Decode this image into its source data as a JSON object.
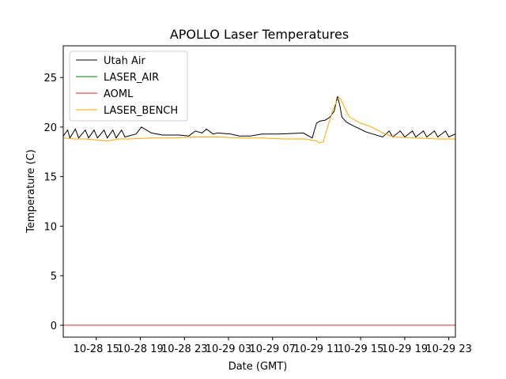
{
  "chart_data": {
    "type": "line",
    "title": "APOLLO Laser Temperatures",
    "xlabel": "Date (GMT)",
    "ylabel": "Temperature (C)",
    "x_unit": "hours since 2018-10-28 12:00 GMT",
    "xlim": [
      0,
      35.6
    ],
    "ylim": [
      -1.2,
      28.2
    ],
    "yticks": [
      0,
      5,
      10,
      15,
      20,
      25
    ],
    "xticks": [
      {
        "x": 3,
        "label": "10-28 15"
      },
      {
        "x": 7,
        "label": "10-28 19"
      },
      {
        "x": 11,
        "label": "10-28 23"
      },
      {
        "x": 15,
        "label": "10-29 03"
      },
      {
        "x": 19,
        "label": "10-29 07"
      },
      {
        "x": 23,
        "label": "10-29 11"
      },
      {
        "x": 27,
        "label": "10-29 15"
      },
      {
        "x": 31,
        "label": "10-29 19"
      },
      {
        "x": 35,
        "label": "10-29 23"
      }
    ],
    "legend_position": "top-left",
    "series": [
      {
        "name": "Utah Air",
        "color": "#000000",
        "x": [
          0,
          0.4,
          0.6,
          1.1,
          1.4,
          2.0,
          2.3,
          2.8,
          3.1,
          3.7,
          4.0,
          4.5,
          4.8,
          5.3,
          5.6,
          6.6,
          7.1,
          8.0,
          9.0,
          10.5,
          11.4,
          12.0,
          12.6,
          13.0,
          13.6,
          14.0,
          15.2,
          16.0,
          17.0,
          18.0,
          19.5,
          21.8,
          22.6,
          23.0,
          23.3,
          23.8,
          24.2,
          24.6,
          24.9,
          25.1,
          25.3,
          25.7,
          26.2,
          27.5,
          29.0,
          29.6,
          29.9,
          30.6,
          31.0,
          31.7,
          32.0,
          32.7,
          33.0,
          33.7,
          34.0,
          34.7,
          35.0,
          35.6
        ],
        "y": [
          19.1,
          19.7,
          18.9,
          19.8,
          18.9,
          19.7,
          18.9,
          19.7,
          18.9,
          19.7,
          18.9,
          19.7,
          18.9,
          19.7,
          19.0,
          19.3,
          20.0,
          19.4,
          19.2,
          19.2,
          19.1,
          19.6,
          19.4,
          19.8,
          19.3,
          19.4,
          19.3,
          19.1,
          19.1,
          19.3,
          19.3,
          19.4,
          18.9,
          20.4,
          20.6,
          20.7,
          21.0,
          21.6,
          23.1,
          22.2,
          21.0,
          20.5,
          20.2,
          19.5,
          19.0,
          19.6,
          19.0,
          19.6,
          19.0,
          19.6,
          19.0,
          19.6,
          19.0,
          19.6,
          19.0,
          19.6,
          19.0,
          19.3
        ]
      },
      {
        "name": "LASER_AIR",
        "color": "#008000",
        "x": [],
        "y": []
      },
      {
        "name": "AOML",
        "color": "#d62728",
        "x": [
          0,
          35.6
        ],
        "y": [
          0,
          0
        ]
      },
      {
        "name": "LASER_BENCH",
        "color": "#ffa500",
        "x": [
          0,
          1.0,
          2.0,
          3.0,
          4.0,
          5.0,
          6.0,
          8.0,
          10.0,
          12.0,
          13.0,
          14.0,
          16.0,
          18.0,
          20.0,
          22.0,
          23.0,
          23.2,
          23.6,
          24.0,
          24.5,
          25.0,
          25.2,
          25.6,
          26.0,
          27.0,
          28.0,
          29.0,
          30.0,
          32.0,
          34.0,
          35.6
        ],
        "y": [
          18.9,
          18.8,
          18.8,
          18.7,
          18.6,
          18.8,
          18.8,
          18.9,
          18.9,
          19.0,
          19.0,
          19.0,
          18.9,
          18.9,
          18.8,
          18.8,
          18.6,
          18.4,
          18.5,
          20.0,
          21.8,
          23.0,
          22.8,
          21.8,
          21.0,
          20.4,
          20.0,
          19.4,
          19.0,
          18.9,
          18.8,
          18.8
        ]
      }
    ]
  }
}
